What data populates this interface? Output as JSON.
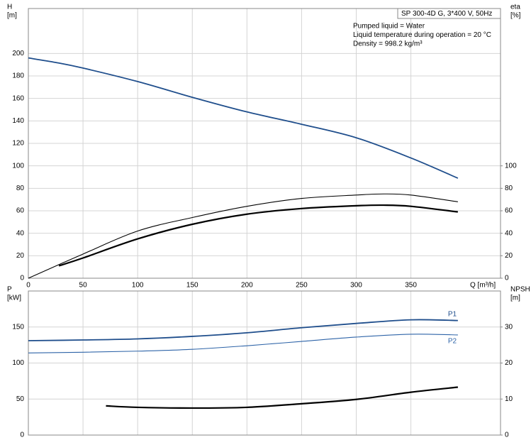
{
  "chart_data": [
    {
      "type": "line",
      "title": "SP 300-4D G, 3*400 V, 50Hz",
      "annotations": [
        "Pumped liquid = Water",
        "Liquid temperature during operation = 20 °C",
        "Density = 998.2 kg/m³"
      ],
      "xlabel": "Q [m³/h]",
      "ylabel": [
        "H",
        "[m]"
      ],
      "y2label": [
        "eta",
        "[%]"
      ],
      "xlim": [
        0,
        432
      ],
      "xticks": [
        0,
        50,
        100,
        150,
        200,
        250,
        300,
        350
      ],
      "xtick_labels": true,
      "ylim": [
        0,
        240
      ],
      "yticks": [
        0,
        20,
        40,
        60,
        80,
        100,
        120,
        140,
        160,
        180,
        200
      ],
      "y2lim": [
        0,
        240
      ],
      "y2ticks": [
        0,
        20,
        40,
        60,
        80,
        100
      ],
      "grid": true,
      "series": [
        {
          "color": "#1f4e8c",
          "width": 1.8,
          "x": [
            0,
            25,
            50,
            100,
            150,
            200,
            250,
            300,
            350,
            393
          ],
          "values": [
            196,
            192,
            187,
            175,
            161,
            148,
            137,
            125,
            107,
            89
          ]
        },
        {
          "axis": "y2",
          "color": "#000000",
          "width": 1.1,
          "x": [
            0,
            50,
            100,
            150,
            200,
            250,
            300,
            325,
            350,
            393
          ],
          "values": [
            0,
            21.5,
            42,
            54,
            64,
            71,
            74,
            75,
            74,
            68
          ]
        },
        {
          "axis": "y2",
          "color": "#000000",
          "width": 2.2,
          "x": [
            28,
            50,
            100,
            150,
            200,
            250,
            300,
            325,
            350,
            393
          ],
          "values": [
            11,
            18,
            35,
            48,
            57,
            62,
            64.5,
            65,
            64,
            59
          ]
        }
      ]
    },
    {
      "type": "line",
      "ylabel": [
        "P",
        "[kW]"
      ],
      "y2label": [
        "NPSH",
        "[m]"
      ],
      "xlim": [
        0,
        432
      ],
      "xticks": [
        0,
        50,
        100,
        150,
        200,
        250,
        300,
        350
      ],
      "xtick_labels": false,
      "ylim": [
        0,
        200
      ],
      "yticks": [
        0,
        50,
        100,
        150
      ],
      "y2lim": [
        0,
        40
      ],
      "y2ticks": [
        0,
        10,
        20,
        30
      ],
      "grid": true,
      "series": [
        {
          "name": "P1",
          "color": "#1f4e8c",
          "width": 1.8,
          "x": [
            0,
            50,
            100,
            150,
            200,
            250,
            300,
            350,
            393
          ],
          "values": [
            131,
            132,
            133.5,
            137,
            142,
            149,
            155,
            160,
            159
          ]
        },
        {
          "name": "P2",
          "color": "#2e64a8",
          "width": 1.1,
          "x": [
            0,
            50,
            100,
            150,
            200,
            250,
            300,
            350,
            393
          ],
          "values": [
            114,
            115,
            116.5,
            119,
            124,
            130,
            136,
            140,
            139
          ]
        },
        {
          "axis": "y2",
          "color": "#000000",
          "width": 2.2,
          "x": [
            71,
            100,
            150,
            200,
            250,
            300,
            350,
            393
          ],
          "values": [
            8.1,
            7.7,
            7.5,
            7.7,
            8.7,
            9.9,
            11.9,
            13.3
          ]
        }
      ]
    }
  ]
}
